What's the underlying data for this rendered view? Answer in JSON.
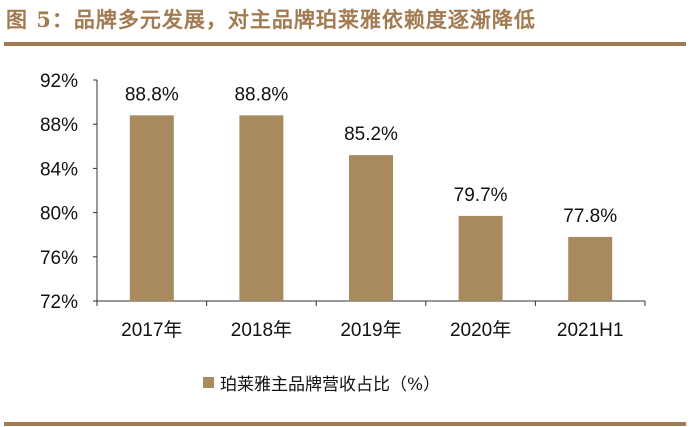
{
  "title": "图 5：品牌多元发展，对主品牌珀莱雅依赖度逐渐降低",
  "colors": {
    "accent": "#a27b52",
    "bar": "#a88a5e"
  },
  "chart_data": {
    "type": "bar",
    "categories": [
      "2017年",
      "2018年",
      "2019年",
      "2020年",
      "2021H1"
    ],
    "series": [
      {
        "name": "珀莱雅主品牌营收占比（%）",
        "values": [
          88.8,
          88.8,
          85.2,
          79.7,
          77.8
        ]
      }
    ],
    "data_labels": [
      "88.8%",
      "88.8%",
      "85.2%",
      "79.7%",
      "77.8%"
    ],
    "ylim": [
      72,
      92
    ],
    "yticks": [
      72,
      76,
      80,
      84,
      88,
      92
    ],
    "ytick_labels": [
      "72%",
      "76%",
      "80%",
      "84%",
      "88%",
      "92%"
    ],
    "legend_position": "bottom",
    "grid": false
  }
}
